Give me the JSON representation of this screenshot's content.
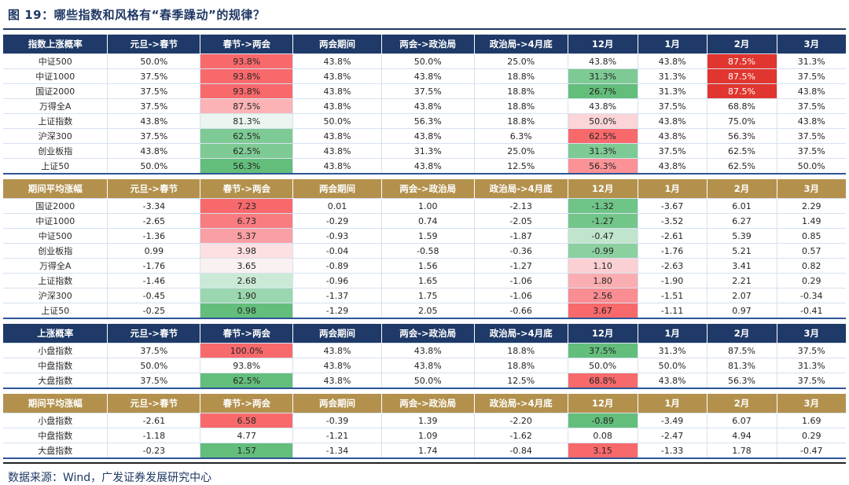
{
  "title": "图 19：哪些指数和风格有“春季躁动”的规律？",
  "footer": "数据来源：Wind，广发证券发展研究中心",
  "colors": {
    "navy_header": "#1f3a68",
    "gold_header": "#b3914d",
    "heat_red_max": "#f8696b",
    "heat_green_max": "#63be7b",
    "highlight_red": "#e1352f",
    "table_bottom_line": "#2e5597",
    "title_navy": "#1f3864"
  },
  "chart_data": {
    "type": "table",
    "note": "heatmap-styled statistics tables; cell = value or [value, bg, fg]",
    "tables": [
      {
        "name": "index-up-probability",
        "header_bg": "#1f3a68",
        "columns": [
          "指数上涨概率",
          "元旦->春节",
          "春节->两会",
          "两会期间",
          "两会->政治局",
          "政治局->4月底",
          "12月",
          "1月",
          "2月",
          "3月"
        ],
        "rows": [
          [
            "中证500",
            "50.0%",
            [
              "93.8%",
              "#f8696b"
            ],
            "43.8%",
            "50.0%",
            "25.0%",
            "43.8%",
            "43.8%",
            [
              "87.5%",
              "#e1352f",
              "#ffffff"
            ],
            "31.3%"
          ],
          [
            "中证1000",
            "37.5%",
            [
              "93.8%",
              "#f8696b"
            ],
            "43.8%",
            "43.8%",
            "18.8%",
            [
              "31.3%",
              "#7eca94"
            ],
            "31.3%",
            [
              "87.5%",
              "#e1352f",
              "#ffffff"
            ],
            "37.5%"
          ],
          [
            "国证2000",
            "37.5%",
            [
              "93.8%",
              "#f8696b"
            ],
            "43.8%",
            "37.5%",
            "18.8%",
            [
              "26.7%",
              "#63be7b"
            ],
            "31.3%",
            [
              "87.5%",
              "#e1352f",
              "#ffffff"
            ],
            "43.8%"
          ],
          [
            "万得全A",
            "37.5%",
            [
              "87.5%",
              "#fbb3b6"
            ],
            "43.8%",
            "43.8%",
            "18.8%",
            "43.8%",
            "37.5%",
            "68.8%",
            "37.5%"
          ],
          [
            "上证指数",
            "43.8%",
            [
              "81.3%",
              "#ecf5ef"
            ],
            "50.0%",
            "56.3%",
            "18.8%",
            [
              "50.0%",
              "#fbd5d7"
            ],
            "43.8%",
            "75.0%",
            "43.8%"
          ],
          [
            "沪深300",
            "37.5%",
            [
              "62.5%",
              "#7eca94"
            ],
            "43.8%",
            "43.8%",
            "6.3%",
            [
              "62.5%",
              "#f8696b"
            ],
            "43.8%",
            "56.3%",
            "37.5%"
          ],
          [
            "创业板指",
            "43.8%",
            [
              "62.5%",
              "#7eca94"
            ],
            "43.8%",
            "31.3%",
            "25.0%",
            [
              "31.3%",
              "#7eca94"
            ],
            "37.5%",
            "62.5%",
            "37.5%"
          ],
          [
            "上证50",
            "50.0%",
            [
              "56.3%",
              "#63be7b"
            ],
            "43.8%",
            "43.8%",
            "12.5%",
            [
              "56.3%",
              "#fa9296"
            ],
            "43.8%",
            "62.5%",
            "50.0%"
          ]
        ]
      },
      {
        "name": "index-avg-gain",
        "header_bg": "#b3914d",
        "columns": [
          "期间平均涨幅",
          "元旦->春节",
          "春节->两会",
          "两会期间",
          "两会->政治局",
          "政治局->4月底",
          "12月",
          "1月",
          "2月",
          "3月"
        ],
        "rows": [
          [
            "国证2000",
            "-3.34",
            [
              "7.23",
              "#f8696b"
            ],
            "0.01",
            "1.00",
            "-2.13",
            [
              "-1.32",
              "#6fc487"
            ],
            "-3.67",
            "6.01",
            "2.29"
          ],
          [
            "中证1000",
            "-2.65",
            [
              "6.73",
              "#f97c80"
            ],
            "-0.29",
            "0.74",
            "-2.05",
            [
              "-1.27",
              "#73c68a"
            ],
            "-3.52",
            "6.27",
            "1.49"
          ],
          [
            "中证500",
            "-1.36",
            [
              "5.37",
              "#fa9fa3"
            ],
            "-0.93",
            "1.59",
            "-1.87",
            [
              "-0.47",
              "#c0e5cc"
            ],
            "-2.61",
            "5.39",
            "0.85"
          ],
          [
            "创业板指",
            "0.99",
            [
              "3.98",
              "#fde0e1"
            ],
            "-0.04",
            "-0.58",
            "-0.36",
            [
              "-0.99",
              "#8cd0a0"
            ],
            "-1.76",
            "5.21",
            "0.57"
          ],
          [
            "万得全A",
            "-1.76",
            [
              "3.65",
              "#faf1f1"
            ],
            "-0.89",
            "1.56",
            "-1.27",
            [
              "1.10",
              "#fbd0d2"
            ],
            "-2.63",
            "3.41",
            "0.82"
          ],
          [
            "上证指数",
            "-1.46",
            [
              "2.68",
              "#cbead6"
            ],
            "-0.96",
            "1.65",
            "-1.06",
            [
              "1.80",
              "#faaeb1"
            ],
            "-1.90",
            "2.21",
            "0.29"
          ],
          [
            "沪深300",
            "-0.45",
            [
              "1.90",
              "#9ad7ae"
            ],
            "-1.37",
            "1.75",
            "-1.06",
            [
              "2.56",
              "#f98d91"
            ],
            "-1.51",
            "2.07",
            "-0.34"
          ],
          [
            "上证50",
            "-0.25",
            [
              "0.98",
              "#63be7b"
            ],
            "-1.29",
            "2.05",
            "-0.66",
            [
              "3.67",
              "#f8696b"
            ],
            "-1.11",
            "0.97",
            "-0.41"
          ]
        ]
      },
      {
        "name": "style-up-probability",
        "header_bg": "#1f3a68",
        "columns": [
          "上涨概率",
          "元旦->春节",
          "春节->两会",
          "两会期间",
          "两会->政治局",
          "政治局->4月底",
          "12月",
          "1月",
          "2月",
          "3月"
        ],
        "rows": [
          [
            "小盘指数",
            "37.5%",
            [
              "100.0%",
              "#f8696b"
            ],
            "43.8%",
            "43.8%",
            "18.8%",
            [
              "37.5%",
              "#63be7b"
            ],
            "31.3%",
            "87.5%",
            "37.5%"
          ],
          [
            "中盘指数",
            "50.0%",
            "93.8%",
            "43.8%",
            "43.8%",
            "18.8%",
            "50.0%",
            "50.0%",
            "81.3%",
            "31.3%"
          ],
          [
            "大盘指数",
            "37.5%",
            [
              "62.5%",
              "#63be7b"
            ],
            "43.8%",
            "50.0%",
            "12.5%",
            [
              "68.8%",
              "#f8696b"
            ],
            "43.8%",
            "56.3%",
            "37.5%"
          ]
        ]
      },
      {
        "name": "style-avg-gain",
        "header_bg": "#b3914d",
        "columns": [
          "期间平均涨幅",
          "元旦->春节",
          "春节->两会",
          "两会期间",
          "两会->政治局",
          "政治局->4月底",
          "12月",
          "1月",
          "2月",
          "3月"
        ],
        "rows": [
          [
            "小盘指数",
            "-2.61",
            [
              "6.58",
              "#f8696b"
            ],
            "-0.39",
            "1.39",
            "-2.20",
            [
              "-0.89",
              "#63be7b"
            ],
            "-3.49",
            "6.07",
            "1.69"
          ],
          [
            "中盘指数",
            "-1.18",
            "4.77",
            "-1.21",
            "1.09",
            "-1.62",
            "0.08",
            "-2.47",
            "4.94",
            "0.29"
          ],
          [
            "大盘指数",
            "-0.23",
            [
              "1.57",
              "#63be7b"
            ],
            "-1.34",
            "1.74",
            "-0.84",
            [
              "3.15",
              "#f8696b"
            ],
            "-1.33",
            "1.78",
            "-0.47"
          ]
        ]
      }
    ]
  }
}
